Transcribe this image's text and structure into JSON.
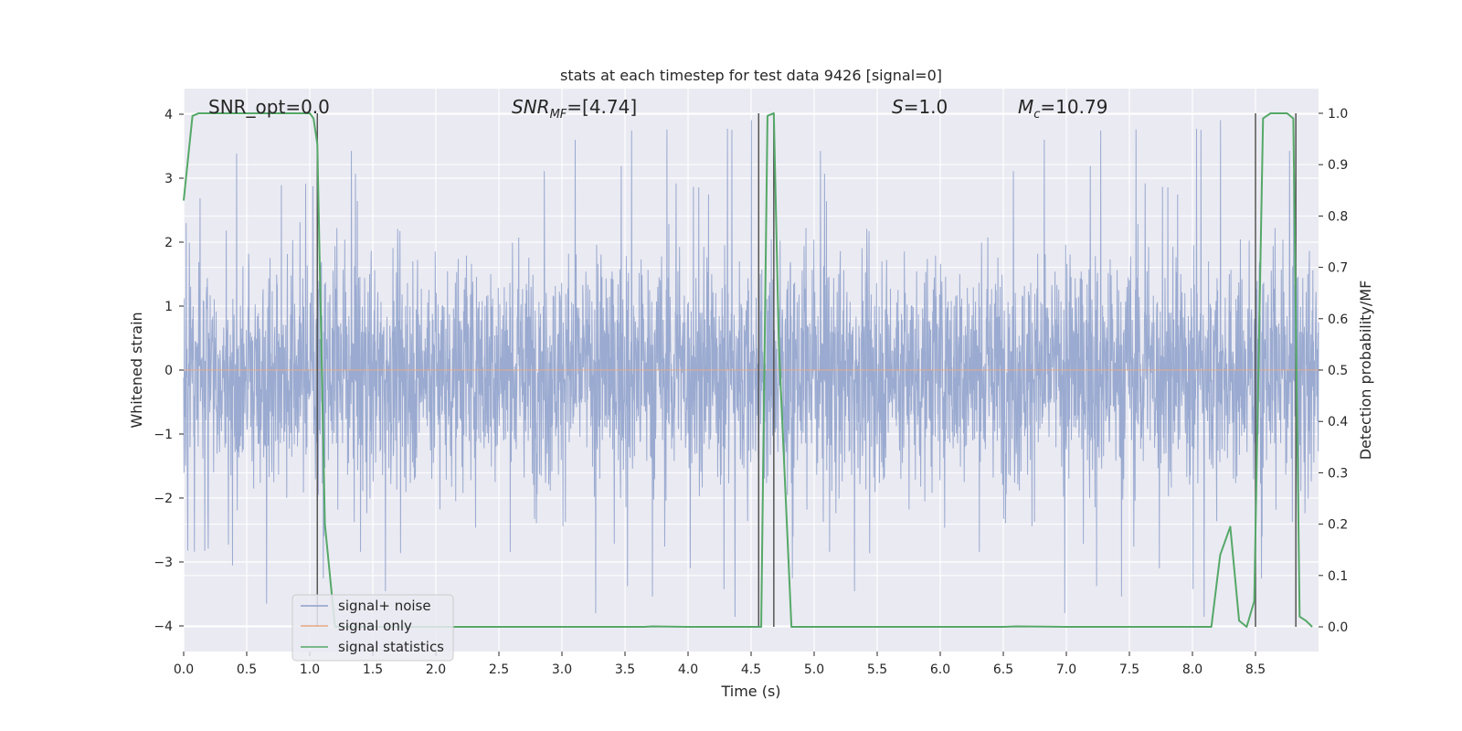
{
  "chart_data": {
    "type": "line",
    "title": "stats at each timestep for test data 9426 [signal=0]",
    "xlabel": "Time (s)",
    "ylabel": "Whitened strain",
    "y2label": "Detection probability/MF",
    "xlim": [
      0.0,
      9.0
    ],
    "ylim": [
      -4.4,
      4.4
    ],
    "y2lim": [
      -0.048,
      1.048
    ],
    "x_ticks": [
      0.0,
      0.5,
      1.0,
      1.5,
      2.0,
      2.5,
      3.0,
      3.5,
      4.0,
      4.5,
      5.0,
      5.5,
      6.0,
      6.5,
      7.0,
      7.5,
      8.0,
      8.5
    ],
    "x_tick_labels": [
      "0.0",
      "0.5",
      "1.0",
      "1.5",
      "2.0",
      "2.5",
      "3.0",
      "3.5",
      "4.0",
      "4.5",
      "5.0",
      "5.5",
      "6.0",
      "6.5",
      "7.0",
      "7.5",
      "8.0",
      "8.5"
    ],
    "y_ticks": [
      -4,
      -3,
      -2,
      -1,
      0,
      1,
      2,
      3,
      4
    ],
    "y_tick_labels": [
      "−4",
      "−3",
      "−2",
      "−1",
      "0",
      "1",
      "2",
      "3",
      "4"
    ],
    "y2_ticks": [
      0.0,
      0.1,
      0.2,
      0.3,
      0.4,
      0.5,
      0.6,
      0.7,
      0.8,
      0.9,
      1.0
    ],
    "y2_tick_labels": [
      "0.0",
      "0.1",
      "0.2",
      "0.3",
      "0.4",
      "0.5",
      "0.6",
      "0.7",
      "0.8",
      "0.9",
      "1.0"
    ],
    "grid": true,
    "legend_position": "lower-left",
    "annotations": {
      "snr_opt": "SNR_opt=0.0",
      "snr_mf_main": "SNR",
      "snr_mf_sub": "MF",
      "snr_mf_value": "=[4.74]",
      "s_main": "S",
      "s_value": "=1.0",
      "mc_main": "M",
      "mc_sub": "c",
      "mc_value": "=10.79"
    },
    "series": [
      {
        "name": "signal+ noise",
        "color": "#8c9fca",
        "axis": "left",
        "kind": "noise",
        "band_sigma": 0.9,
        "peak_max": 4.0,
        "peak_min": -4.0
      },
      {
        "name": "signal only",
        "color": "#e8a882",
        "axis": "left",
        "x": [
          0.0,
          9.0
        ],
        "y": [
          0.0,
          0.0
        ]
      },
      {
        "name": "signal statistics",
        "color": "#55a868",
        "axis": "right",
        "x": [
          0.0,
          0.07,
          0.12,
          0.5,
          1.0,
          1.03,
          1.06,
          1.12,
          1.2,
          2.0,
          3.0,
          3.65,
          3.72,
          4.0,
          4.5,
          4.58,
          4.63,
          4.68,
          4.72,
          4.82,
          5.0,
          6.0,
          6.5,
          6.6,
          7.0,
          8.0,
          8.15,
          8.22,
          8.3,
          8.37,
          8.43,
          8.49,
          8.56,
          8.62,
          8.75,
          8.8,
          8.85,
          8.9,
          8.95
        ],
        "y": [
          0.83,
          0.995,
          1.0,
          1.0,
          1.0,
          0.99,
          0.94,
          0.2,
          0.0,
          0.0,
          0.0,
          0.0,
          0.001,
          0.0,
          0.0,
          0.0,
          0.995,
          1.0,
          0.55,
          0.0,
          0.0,
          0.0,
          0.0,
          0.001,
          0.0,
          0.0,
          0.0,
          0.14,
          0.195,
          0.012,
          0.0,
          0.05,
          0.99,
          1.0,
          1.0,
          0.99,
          0.02,
          0.012,
          0.0
        ]
      }
    ],
    "vlines": [
      1.06,
      4.56,
      4.68,
      8.5,
      8.82
    ],
    "vline_color": "#555555",
    "vline_range": [
      0.0,
      1.0
    ]
  }
}
